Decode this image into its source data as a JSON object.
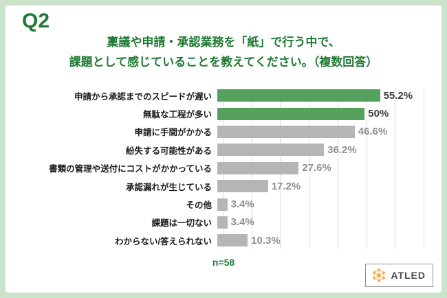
{
  "page": {
    "question_label": "Q2",
    "title_line1": "稟議や申請・承認業務を「紙」で行う中で、",
    "title_line2": "課題として感じていることを教えてください。（複数回答）",
    "sample_size": "n=58",
    "logo_text": "ATLED"
  },
  "colors": {
    "background": "#cbe2cb",
    "card": "#ffffff",
    "title_green": "#1e7a33",
    "bar_green": "#55a05c",
    "bar_gray": "#b5b5b5",
    "value_dark": "#3c3c3c",
    "value_gray": "#8f8f8f",
    "logo_orange": "#f0a43c"
  },
  "icons": {
    "logo_icon": "molecule-dots-icon"
  },
  "chart_data": {
    "type": "bar",
    "orientation": "horizontal",
    "title": "稟議や申請・承認業務を「紙」で行う中で、課題として感じていることを教えてください。（複数回答）",
    "categories": [
      "申請から承認までのスピードが遅い",
      "無駄な工程が多い",
      "申請に手間がかかる",
      "紛失する可能性がある",
      "書類の管理や送付にコストがかかっている",
      "承認漏れが生じている",
      "その他",
      "課題は一切ない",
      "わからない/答えられない"
    ],
    "values": [
      55.2,
      50,
      46.6,
      36.2,
      27.6,
      17.2,
      3.4,
      3.4,
      10.3
    ],
    "value_labels": [
      "55.2%",
      "50%",
      "46.6%",
      "36.2%",
      "27.6%",
      "17.2%",
      "3.4%",
      "3.4%",
      "10.3%"
    ],
    "highlight_count": 2,
    "xlim": [
      0,
      70
    ],
    "grid_step": 10,
    "grid": true,
    "legend": false,
    "note": "n=58"
  }
}
